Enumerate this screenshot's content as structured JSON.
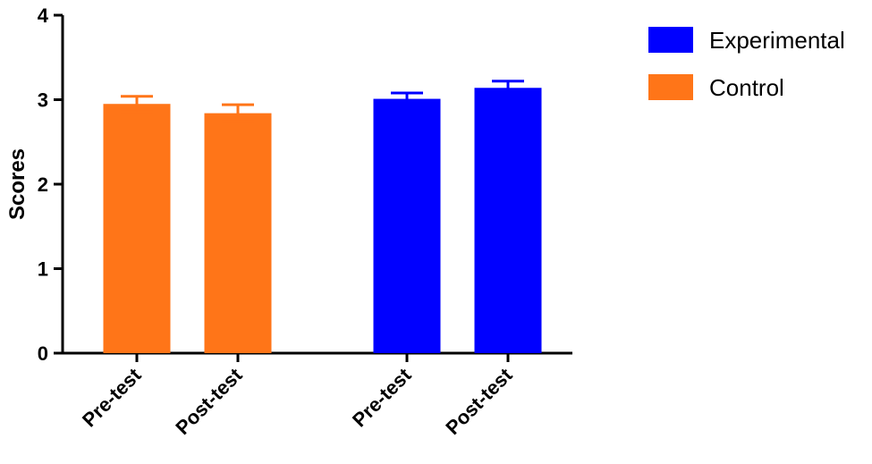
{
  "chart_data": {
    "type": "bar",
    "ylabel": "Scores",
    "xlabel": "",
    "ylim": [
      0,
      4
    ],
    "yticks": [
      "0",
      "1",
      "2",
      "3",
      "4"
    ],
    "grid": false,
    "legend_position": "top-right",
    "legend": [
      {
        "name": "Experimental",
        "color": "#0000ff"
      },
      {
        "name": "Control",
        "color": "#ff7518"
      }
    ],
    "bars": [
      {
        "category": "Pre-test",
        "group": "Control",
        "value": 2.95,
        "error": 0.09,
        "color": "#ff7518"
      },
      {
        "category": "Post-test",
        "group": "Control",
        "value": 2.84,
        "error": 0.1,
        "color": "#ff7518"
      },
      {
        "category": "Pre-test",
        "group": "Experimental",
        "value": 3.01,
        "error": 0.07,
        "color": "#0000ff"
      },
      {
        "category": "Post-test",
        "group": "Experimental",
        "value": 3.14,
        "error": 0.08,
        "color": "#0000ff"
      }
    ]
  }
}
